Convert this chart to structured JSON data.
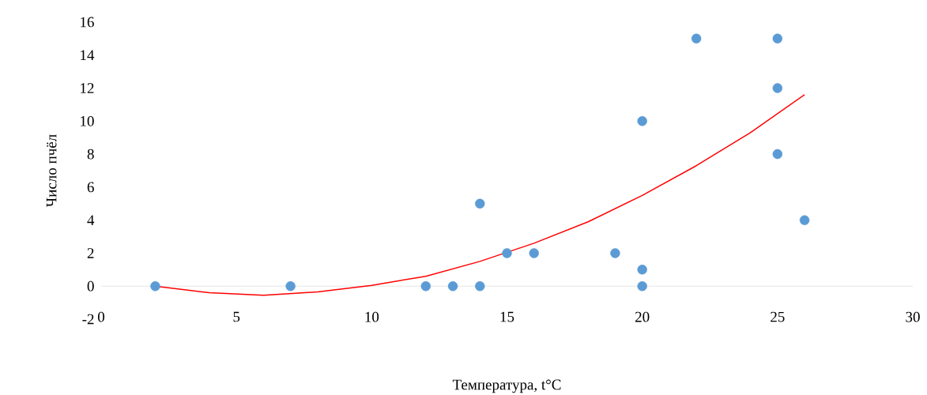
{
  "chart_data": {
    "type": "scatter",
    "xlabel": "Температура, t°C",
    "ylabel": "Число пчёл",
    "xlim": [
      0,
      30
    ],
    "xticks": [
      0,
      5,
      10,
      15,
      20,
      25,
      30
    ],
    "ylim": [
      -2,
      16
    ],
    "yticks": [
      -2,
      0,
      2,
      4,
      6,
      8,
      10,
      12,
      14,
      16
    ],
    "grid": false,
    "legend": false,
    "series": [
      {
        "color": "#5b9bd5",
        "marker": "circle",
        "x": [
          2,
          7,
          12,
          13,
          14,
          14,
          15,
          16,
          19,
          20,
          20,
          20,
          22,
          25,
          25,
          25,
          26
        ],
        "values": [
          0,
          0,
          0,
          0,
          0,
          5,
          2,
          2,
          2,
          0,
          1,
          10,
          15,
          15,
          12,
          8,
          4
        ]
      },
      {
        "type": "line",
        "color": "#ff0000",
        "marker": "none",
        "line_style": "solid",
        "x": [
          2,
          4,
          6,
          8,
          10,
          12,
          14,
          16,
          18,
          20,
          22,
          24,
          26
        ],
        "values": [
          0,
          -0.4,
          -0.55,
          -0.35,
          0.05,
          0.6,
          1.5,
          2.6,
          3.9,
          5.5,
          7.3,
          9.3,
          11.6
        ]
      }
    ]
  }
}
